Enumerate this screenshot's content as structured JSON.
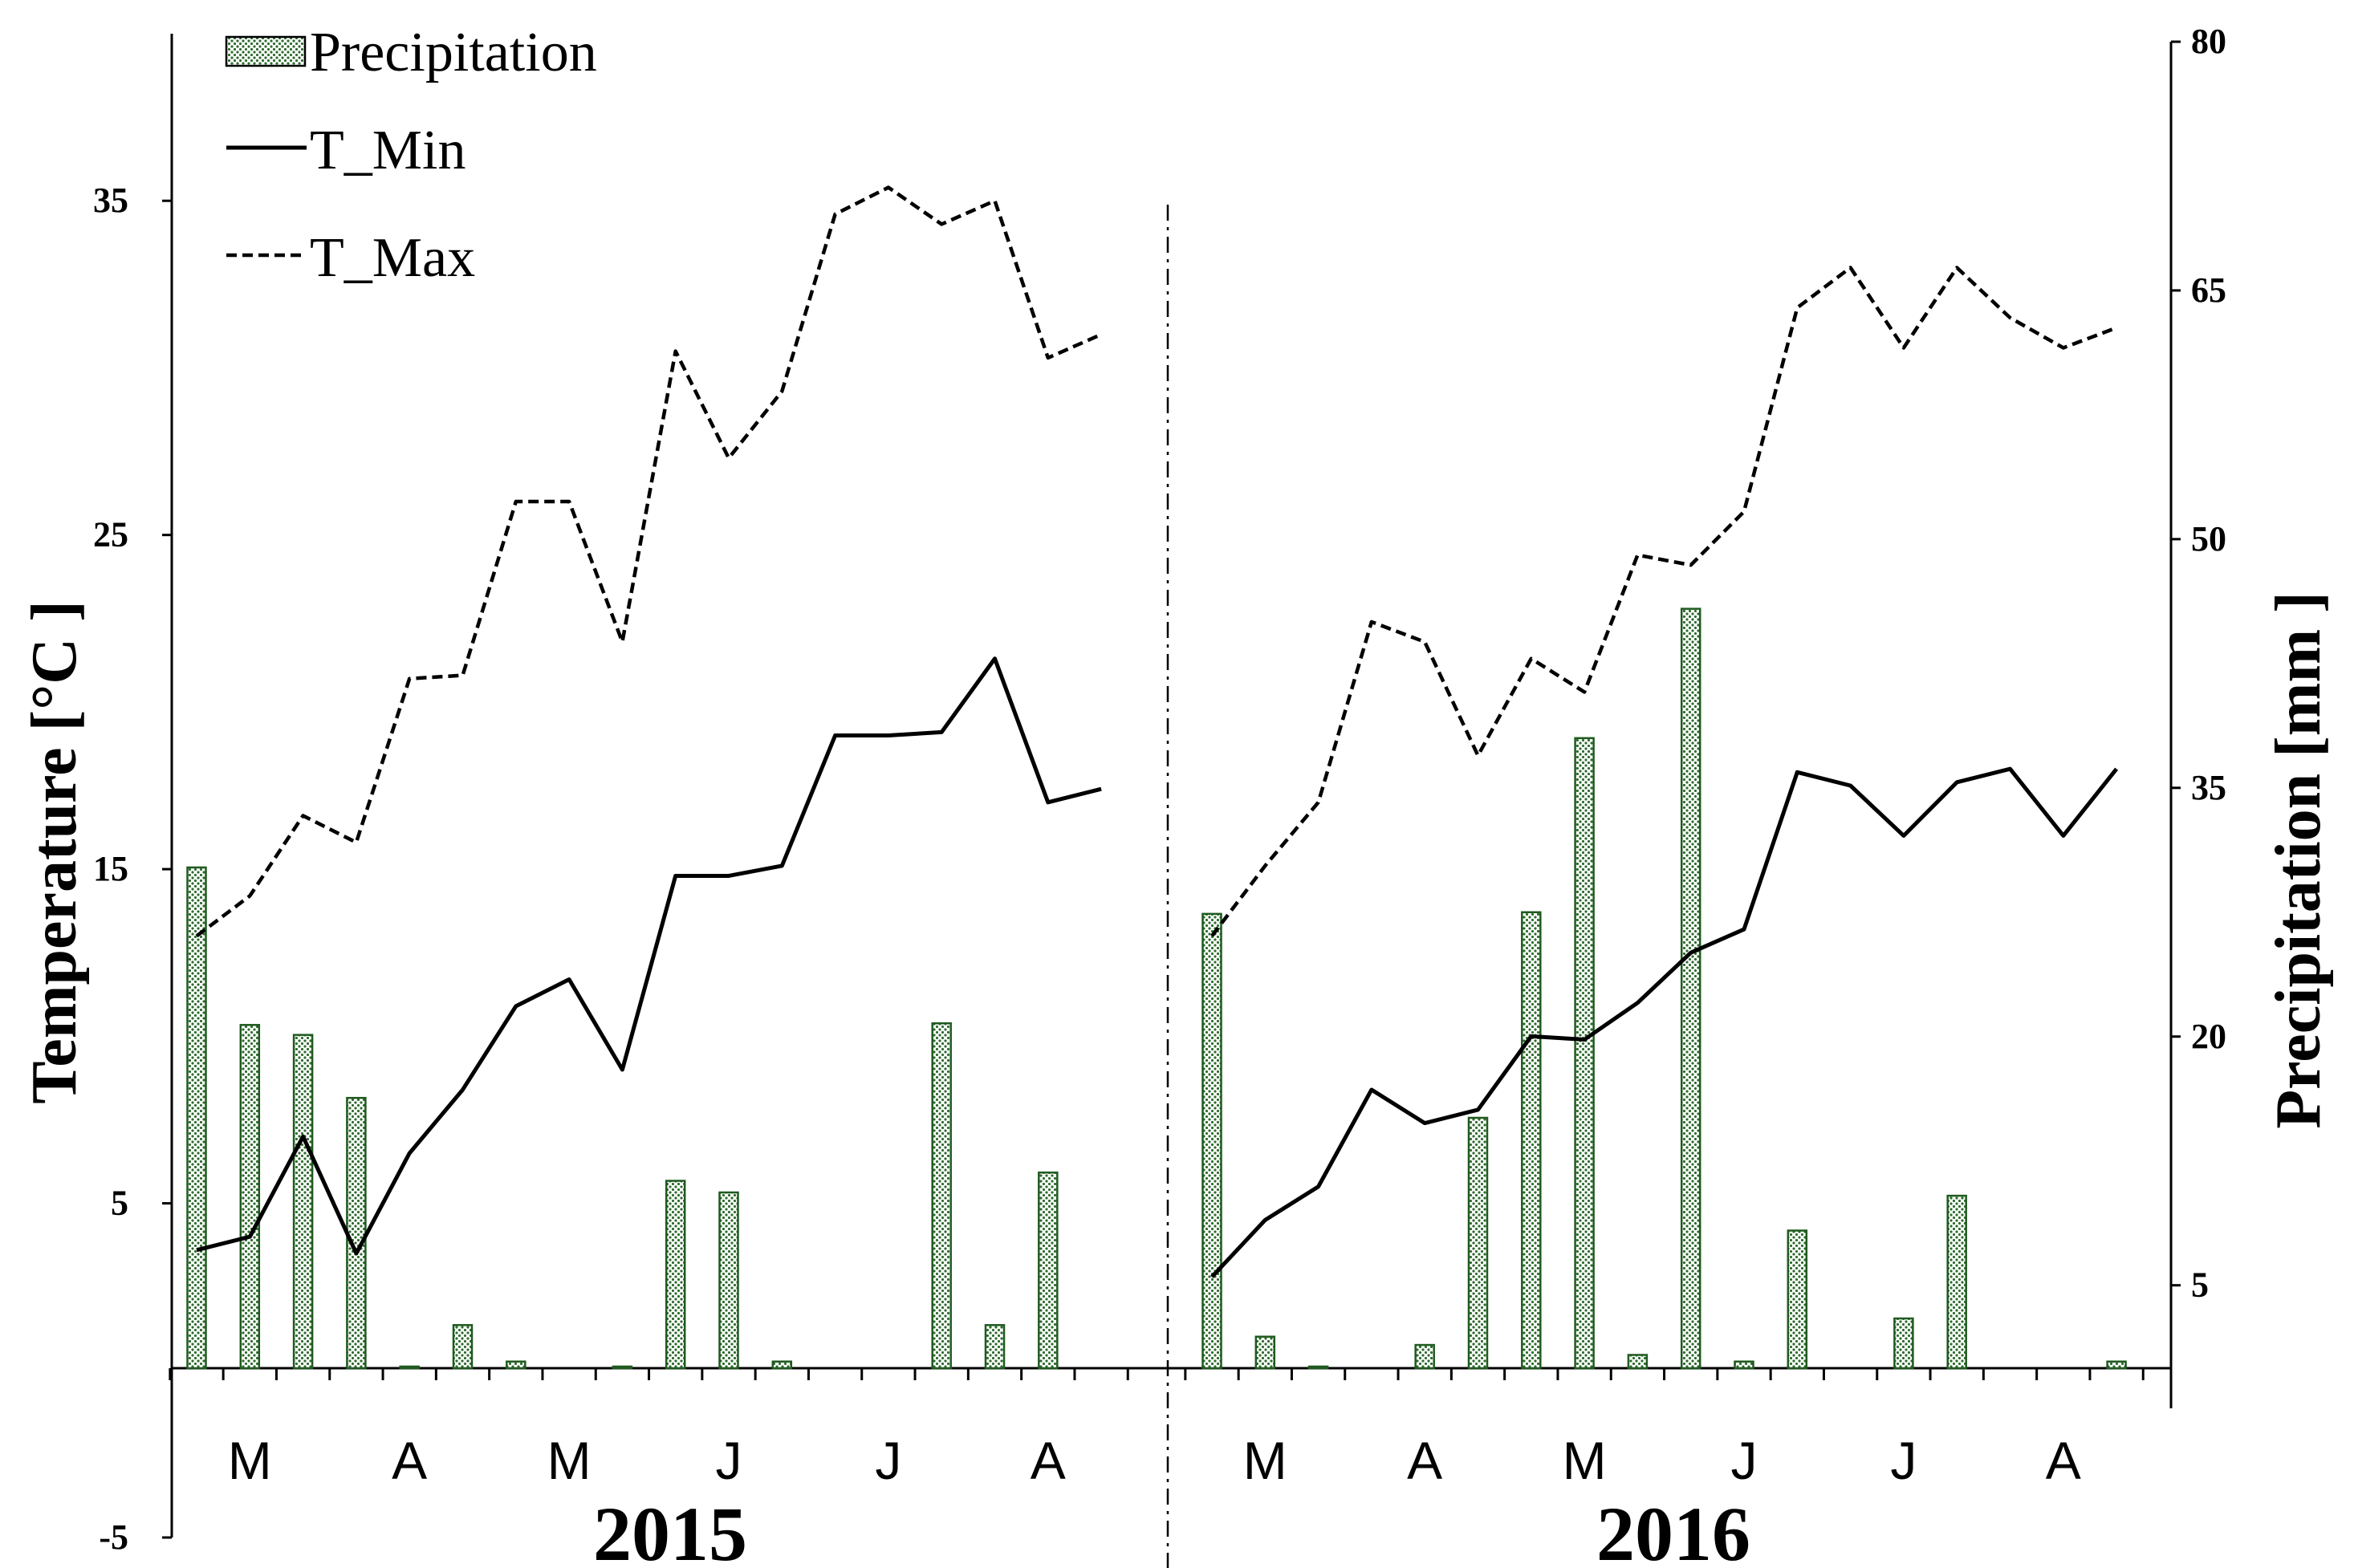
{
  "chart_data": {
    "type": "bar+line",
    "left_axis": {
      "label": "Temperature [°C ]",
      "ylim": [
        -5,
        40
      ],
      "ticks": [
        -5,
        5,
        15,
        25,
        35
      ]
    },
    "right_axis": {
      "label": "Precipitation [mm ]",
      "ylim": [
        0,
        80
      ],
      "ticks": [
        5,
        20,
        35,
        50,
        65,
        80
      ]
    },
    "legend": {
      "position": "top-left",
      "entries": [
        {
          "name": "Precipitation",
          "style": "dotted-bar"
        },
        {
          "name": "T_Min",
          "style": "solid-line"
        },
        {
          "name": "T_Max",
          "style": "dashed-line"
        }
      ]
    },
    "years": [
      {
        "label": "2015",
        "months": [
          "M",
          "A",
          "M",
          "J",
          "J",
          "A"
        ],
        "x": [
          0,
          1,
          2,
          3,
          4,
          5,
          6,
          7,
          8,
          9,
          10,
          11,
          12,
          13,
          14,
          15,
          16,
          17
        ],
        "precipitation": [
          30.2,
          20.7,
          20.1,
          16.3,
          0.1,
          2.6,
          0.4,
          0,
          0.1,
          11.3,
          10.6,
          0.4,
          0,
          0,
          20.8,
          2.6,
          11.8,
          0
        ],
        "t_min": [
          3.6,
          4.0,
          7.0,
          3.5,
          6.5,
          8.4,
          10.9,
          11.7,
          9.0,
          14.8,
          14.8,
          15.1,
          19.0,
          19.0,
          19.1,
          21.3,
          17.0,
          17.4
        ],
        "t_max": [
          13.0,
          14.2,
          16.6,
          15.8,
          20.7,
          20.8,
          26.0,
          26.0,
          21.8,
          30.5,
          27.3,
          29.3,
          34.6,
          35.4,
          34.3,
          35.0,
          30.3,
          31.0
        ]
      },
      {
        "label": "2016",
        "months": [
          "M",
          "A",
          "M",
          "J",
          "J",
          "A"
        ],
        "x": [
          0,
          1,
          2,
          3,
          4,
          5,
          6,
          7,
          8,
          9,
          10,
          11,
          12,
          13,
          14,
          15,
          16,
          17
        ],
        "precipitation": [
          27.4,
          1.9,
          0.1,
          0,
          1.4,
          15.1,
          27.5,
          38.0,
          0.8,
          45.8,
          0.4,
          8.3,
          0,
          3.0,
          10.4,
          0,
          0,
          0.4
        ],
        "t_min": [
          2.8,
          4.5,
          5.5,
          8.4,
          7.4,
          7.8,
          10.0,
          9.9,
          11.0,
          12.5,
          13.2,
          17.9,
          17.5,
          16.0,
          17.6,
          18.0,
          16.0,
          18.0
        ],
        "t_max": [
          13.0,
          15.1,
          17.0,
          22.4,
          21.8,
          18.4,
          21.3,
          20.3,
          24.4,
          24.1,
          25.7,
          31.8,
          33.0,
          30.6,
          33.0,
          31.5,
          30.6,
          31.2
        ]
      }
    ]
  }
}
